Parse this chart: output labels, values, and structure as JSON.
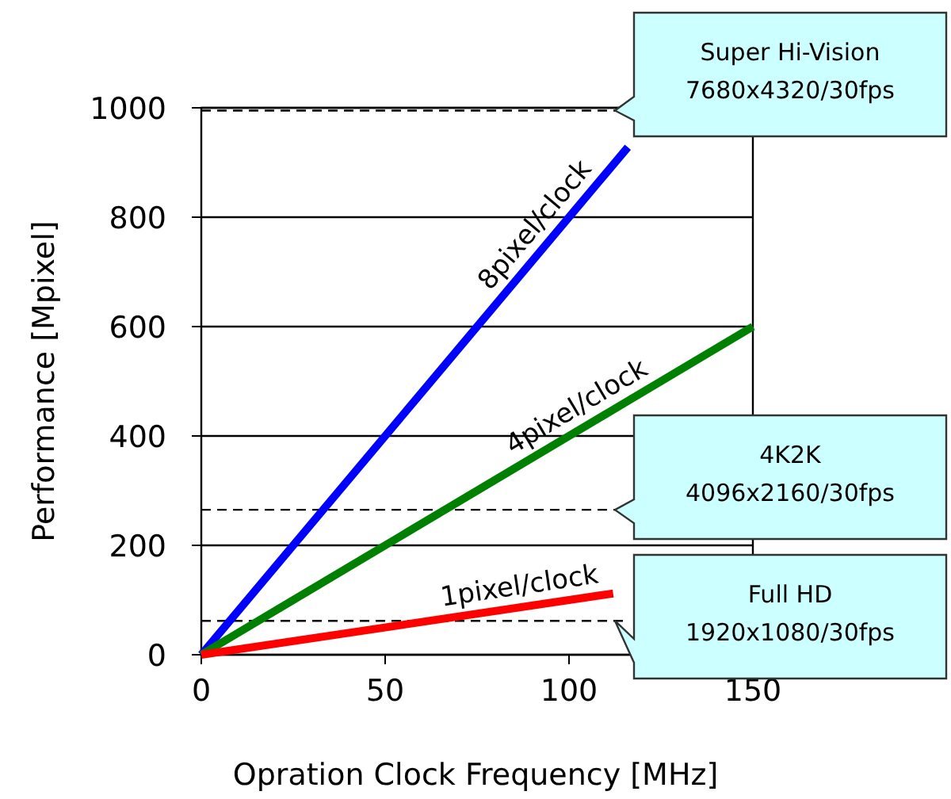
{
  "chart_data": {
    "type": "line",
    "xlabel": "Opration Clock Frequency [MHz]",
    "ylabel": "Performance [Mpixel]",
    "xlim": [
      0,
      150
    ],
    "xticks": [
      0,
      50,
      100,
      150
    ],
    "ylim": [
      0,
      1000
    ],
    "yticks": [
      0,
      200,
      400,
      600,
      800,
      1000
    ],
    "grid": "y",
    "line_style": "solid",
    "series": [
      {
        "x": [
          0,
          116
        ],
        "values": [
          0,
          928
        ],
        "color": "#0000ff"
      },
      {
        "x": [
          0,
          150
        ],
        "values": [
          0,
          600
        ],
        "color": "#008000"
      },
      {
        "x": [
          0,
          112
        ],
        "values": [
          0,
          112
        ],
        "color": "#ff0000"
      }
    ],
    "ref_lines": [
      {
        "axis": "y",
        "value": 995,
        "label": "Super Hi-Vision\n7680x4320/30fps",
        "line_style": "dashed",
        "color": "#000000"
      },
      {
        "axis": "y",
        "value": 265,
        "label": "4K2K\n4096x2160/30fps",
        "line_style": "dashed",
        "color": "#000000"
      },
      {
        "axis": "y",
        "value": 62,
        "label": "Full HD\n1920x1080/30fps",
        "line_style": "dashed",
        "color": "#000000"
      }
    ],
    "annotations": [
      "8pixel/clock",
      "4pixel/clock",
      "1pixel/clock"
    ]
  }
}
